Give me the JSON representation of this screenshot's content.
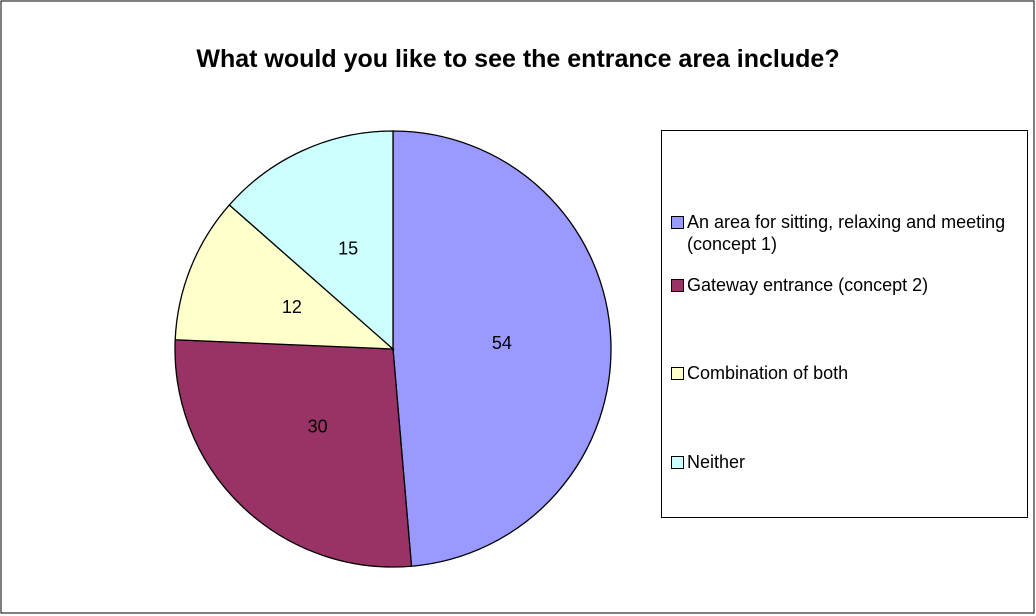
{
  "chart_data": {
    "type": "pie",
    "title": "What would you like to see the entrance area include?",
    "categories": [
      "An area for sitting, relaxing and meeting (concept 1)",
      "Gateway entrance (concept 2)",
      "Combination of both",
      "Neither"
    ],
    "values": [
      54,
      30,
      12,
      15
    ],
    "colors": [
      "#9999ff",
      "#993366",
      "#ffffcc",
      "#ccffff"
    ],
    "legend": "right"
  }
}
